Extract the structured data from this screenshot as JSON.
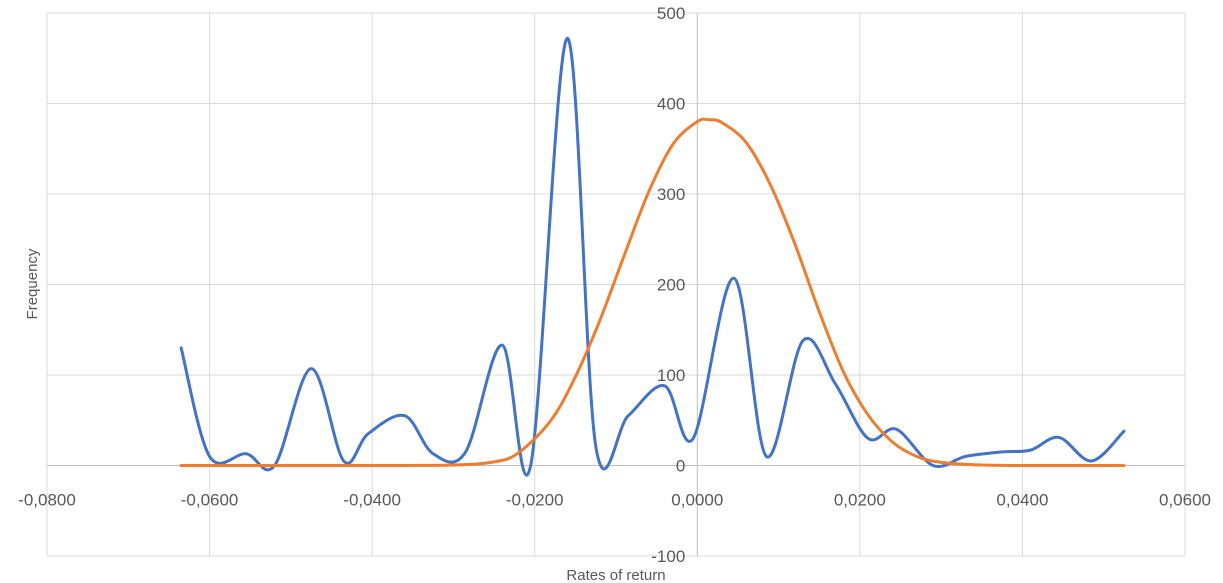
{
  "chart_data": {
    "type": "line",
    "title": "",
    "xlabel": "Rates of return",
    "ylabel": "Frequency",
    "xlim": [
      -0.08,
      0.06
    ],
    "ylim": [
      -100,
      500
    ],
    "grid": true,
    "legend": "none",
    "x_ticks": [
      {
        "value": -0.08,
        "label": "-0,0800"
      },
      {
        "value": -0.06,
        "label": "-0,0600"
      },
      {
        "value": -0.04,
        "label": "-0,0400"
      },
      {
        "value": -0.02,
        "label": "-0,0200"
      },
      {
        "value": 0.0,
        "label": "0,0000"
      },
      {
        "value": 0.02,
        "label": "0,0200"
      },
      {
        "value": 0.04,
        "label": "0,0400"
      },
      {
        "value": 0.06,
        "label": "0,0600"
      }
    ],
    "y_ticks": [
      {
        "value": -100,
        "label": "-100"
      },
      {
        "value": 0,
        "label": "0"
      },
      {
        "value": 100,
        "label": "100"
      },
      {
        "value": 200,
        "label": "200"
      },
      {
        "value": 300,
        "label": "300"
      },
      {
        "value": 400,
        "label": "400"
      },
      {
        "value": 500,
        "label": "500"
      }
    ],
    "series": [
      {
        "color": "#4472C4",
        "points": [
          [
            -0.0635,
            130
          ],
          [
            -0.06,
            10
          ],
          [
            -0.0555,
            13
          ],
          [
            -0.052,
            0
          ],
          [
            -0.0475,
            107
          ],
          [
            -0.0435,
            5
          ],
          [
            -0.0405,
            35
          ],
          [
            -0.036,
            55
          ],
          [
            -0.0325,
            13
          ],
          [
            -0.0285,
            15
          ],
          [
            -0.024,
            133
          ],
          [
            -0.0205,
            0
          ],
          [
            -0.016,
            472
          ],
          [
            -0.0125,
            22
          ],
          [
            -0.0085,
            55
          ],
          [
            -0.004,
            88
          ],
          [
            -0.0005,
            30
          ],
          [
            0.0045,
            207
          ],
          [
            0.0085,
            10
          ],
          [
            0.013,
            138
          ],
          [
            0.017,
            90
          ],
          [
            0.021,
            30
          ],
          [
            0.0245,
            40
          ],
          [
            0.029,
            0
          ],
          [
            0.033,
            10
          ],
          [
            0.0375,
            15
          ],
          [
            0.041,
            17
          ],
          [
            0.0445,
            31
          ],
          [
            0.0485,
            5
          ],
          [
            0.0525,
            38
          ]
        ]
      },
      {
        "color": "#ED7D31",
        "points": [
          [
            -0.0635,
            0
          ],
          [
            -0.04,
            0
          ],
          [
            -0.03,
            0.5
          ],
          [
            -0.025,
            4
          ],
          [
            -0.022,
            14
          ],
          [
            -0.018,
            50
          ],
          [
            -0.015,
            98
          ],
          [
            -0.012,
            160
          ],
          [
            -0.009,
            232
          ],
          [
            -0.006,
            302
          ],
          [
            -0.003,
            355
          ],
          [
            0.0,
            380
          ],
          [
            0.0015,
            382
          ],
          [
            0.003,
            379
          ],
          [
            0.006,
            357
          ],
          [
            0.009,
            310
          ],
          [
            0.012,
            245
          ],
          [
            0.015,
            170
          ],
          [
            0.018,
            103
          ],
          [
            0.021,
            56
          ],
          [
            0.024,
            26
          ],
          [
            0.027,
            10
          ],
          [
            0.03,
            3.5
          ],
          [
            0.035,
            0.5
          ],
          [
            0.04,
            0
          ],
          [
            0.0525,
            0
          ]
        ]
      }
    ]
  }
}
